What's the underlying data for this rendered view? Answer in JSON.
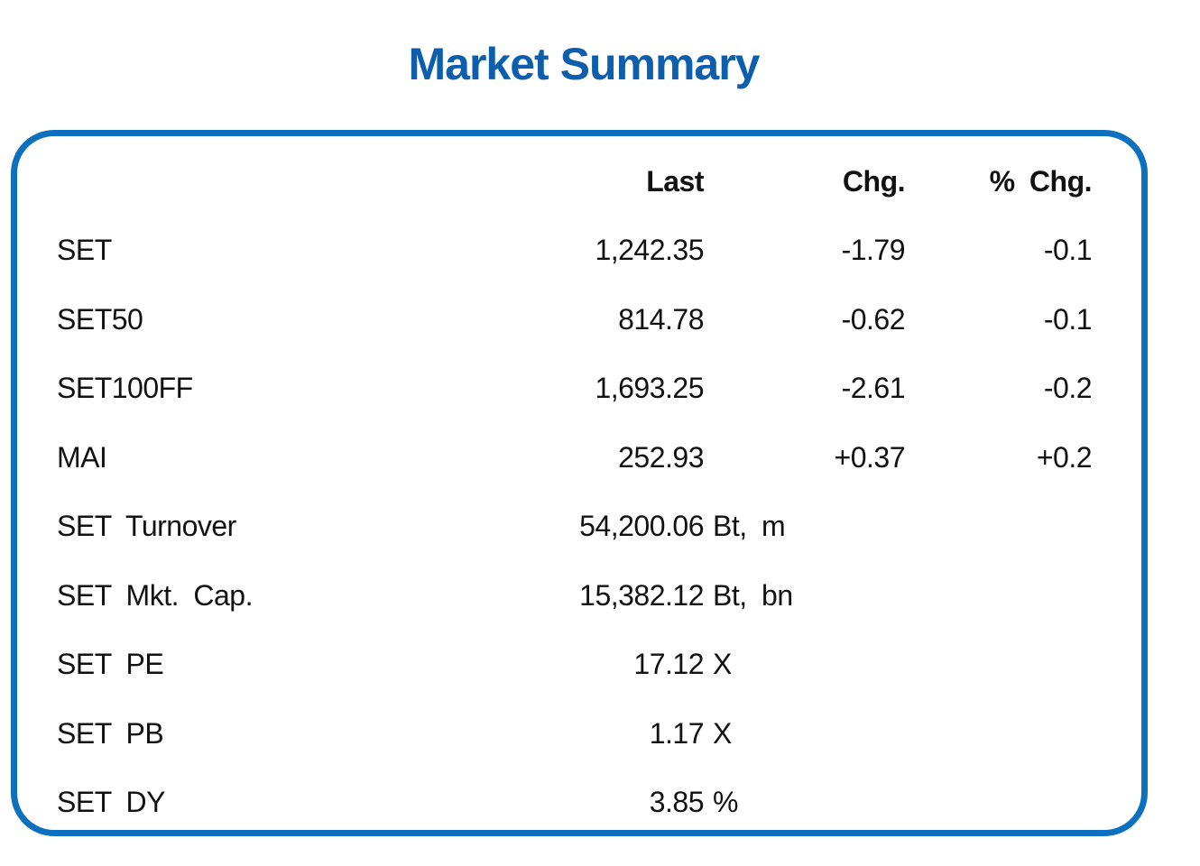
{
  "title": "Market Summary",
  "colors": {
    "title_color": "#0D5FAD",
    "border_color": "#0C70BF",
    "text_color": "#111111",
    "bg_color": "#FFFFFF"
  },
  "table": {
    "headers": {
      "label": "",
      "last": "Last",
      "unit": "",
      "chg": "Chg.",
      "pct": "% Chg."
    },
    "rows": [
      {
        "label": "SET",
        "last": "1,242.35",
        "unit": "",
        "chg": "-1.79",
        "pct": "-0.1"
      },
      {
        "label": "SET50",
        "last": "814.78",
        "unit": "",
        "chg": "-0.62",
        "pct": "-0.1"
      },
      {
        "label": "SET100FF",
        "last": "1,693.25",
        "unit": "",
        "chg": "-2.61",
        "pct": "-0.2"
      },
      {
        "label": "MAI",
        "last": "252.93",
        "unit": "",
        "chg": "+0.37",
        "pct": "+0.2"
      },
      {
        "label": "SET Turnover",
        "last": "54,200.06",
        "unit": "Bt, m",
        "chg": "",
        "pct": ""
      },
      {
        "label": "SET Mkt. Cap.",
        "last": "15,382.12",
        "unit": "Bt, bn",
        "chg": "",
        "pct": ""
      },
      {
        "label": "SET PE",
        "last": "17.12",
        "unit": "X",
        "chg": "",
        "pct": ""
      },
      {
        "label": "SET PB",
        "last": "1.17",
        "unit": "X",
        "chg": "",
        "pct": ""
      },
      {
        "label": "SET DY",
        "last": "3.85",
        "unit": "%",
        "chg": "",
        "pct": ""
      }
    ]
  }
}
